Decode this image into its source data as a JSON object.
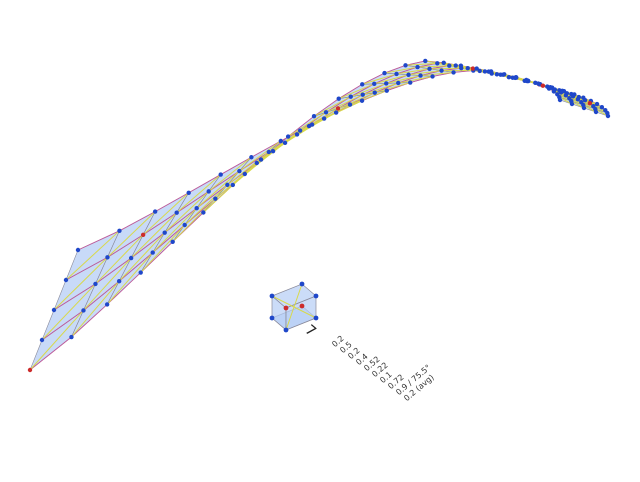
{
  "legend": {
    "cube_label": "7",
    "values": [
      "0.2",
      "0.5",
      "0.2",
      "0.4",
      "0.52",
      "0.22",
      "0.1",
      "0.72",
      "0.9 / 75.5°",
      "0.2 (avg)"
    ]
  },
  "structure": {
    "columns_along_arc": 28,
    "layers": 4,
    "colors": {
      "panel": "#b5cdf5",
      "node": "#1f47c9",
      "highlight_node": "#cc2b2b",
      "strut": "#d9d94a",
      "edge": "#8a8a9a",
      "curve": "#c05a9a"
    }
  }
}
